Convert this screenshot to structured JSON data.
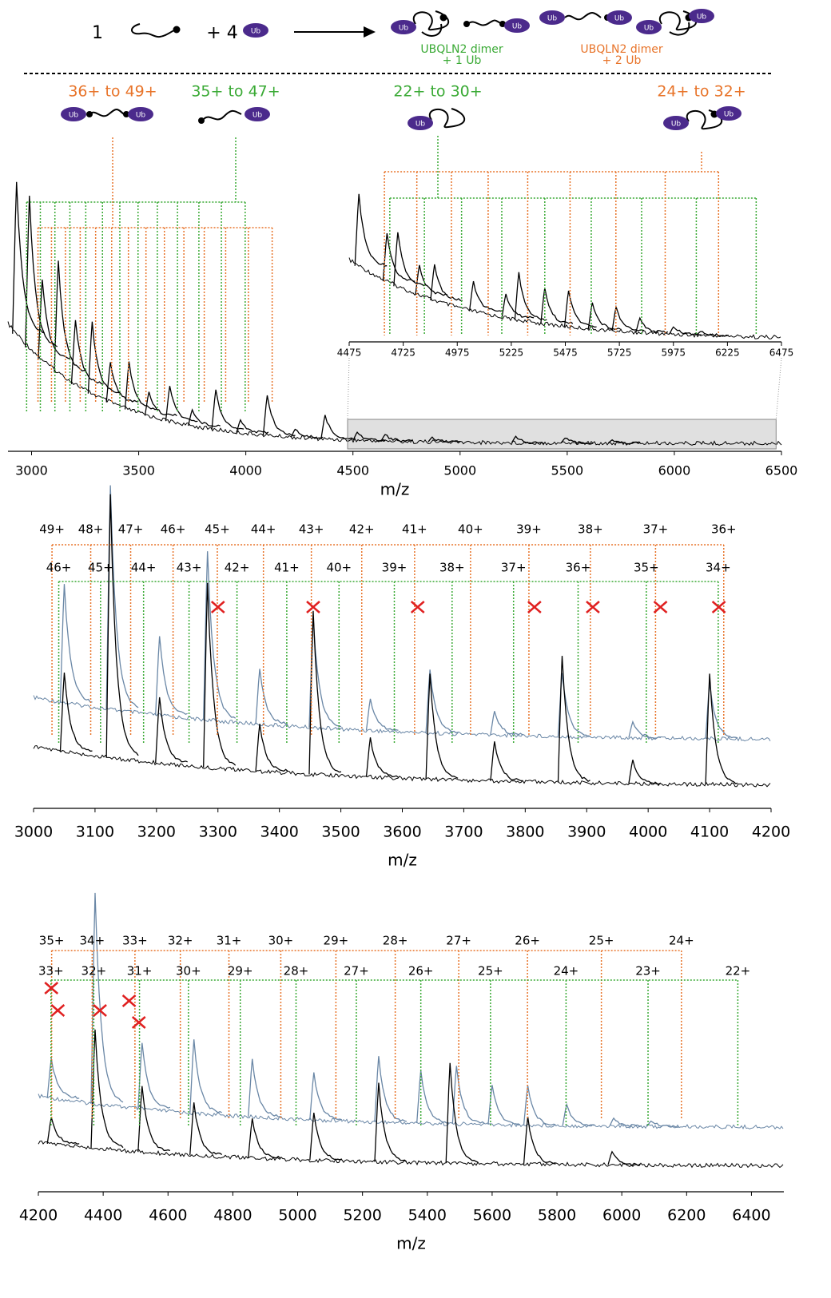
{
  "scheme": {
    "one": "1",
    "plus_four": "+ 4",
    "ub": "Ub",
    "product_1": [
      "UBQLN2 dimer",
      "+ 1 Ub"
    ],
    "product_2": [
      "UBQLN2 dimer",
      "+ 2 Ub"
    ]
  },
  "chart_data": [
    {
      "type": "spectrum",
      "xlabel": "m/z",
      "xlim": [
        2890,
        6500
      ],
      "xticks": [
        3000,
        3500,
        4000,
        4500,
        5000,
        5500,
        6000,
        6500
      ],
      "ylim": [
        0,
        100
      ],
      "series": [
        {
          "color": "#000000",
          "x": [
            2930,
            2990,
            3050,
            3125,
            3205,
            3283,
            3368,
            3455,
            3548,
            3645,
            3750,
            3860,
            3975,
            4100,
            4230,
            4370,
            4520,
            4650,
            4870,
            5260,
            5490,
            5710
          ],
          "values": [
            95,
            95,
            50,
            70,
            40,
            45,
            25,
            30,
            15,
            22,
            10,
            25,
            8,
            25,
            5,
            15,
            5,
            4,
            3,
            4,
            3,
            2
          ]
        }
      ],
      "brackets": [
        {
          "label": "36+ to 49+",
          "color": "#e8742a",
          "x": [
            3030,
            3093,
            3158,
            3227,
            3299,
            3374,
            3452,
            3534,
            3620,
            3711,
            3806,
            3906,
            4012,
            4123
          ]
        },
        {
          "label": "35+ to 47+",
          "color": "#3aaa35",
          "x": [
            2977,
            3041,
            3109,
            3179,
            3253,
            3331,
            3412,
            3497,
            3587,
            3681,
            3781,
            3886,
            3997
          ]
        }
      ],
      "inset": {
        "xlim": [
          4475,
          6475
        ],
        "xticks": [
          4475,
          4725,
          4975,
          5225,
          5475,
          5725,
          5975,
          6225,
          6475
        ],
        "ylim": [
          0,
          100
        ],
        "series": [
          {
            "color": "#000000",
            "x": [
              4520,
              4650,
              4700,
              4800,
              4870,
              5050,
              5200,
              5260,
              5380,
              5490,
              5600,
              5710,
              5820,
              5975,
              6100
            ],
            "values": [
              60,
              40,
              45,
              25,
              30,
              25,
              20,
              40,
              30,
              30,
              22,
              20,
              12,
              6,
              3
            ]
          }
        ],
        "brackets": [
          {
            "label": "22+ to 30+",
            "color": "#3aaa35",
            "x": [
              4663,
              4823,
              4995,
              5181,
              5380,
              5595,
              5828,
              6081,
              6358
            ]
          },
          {
            "label": "24+ to 32+",
            "color": "#e8742a",
            "x": [
              4638,
              4788,
              4948,
              5118,
              5301,
              5497,
              5709,
              5937,
              6184
            ]
          }
        ]
      }
    },
    {
      "type": "spectrum",
      "xlabel": "m/z",
      "xlim": [
        3000,
        4200
      ],
      "xticks": [
        3000,
        3100,
        3200,
        3300,
        3400,
        3500,
        3600,
        3700,
        3800,
        3900,
        4000,
        4100,
        4200
      ],
      "ylim": [
        0,
        100
      ],
      "series": [
        {
          "color": "#6a87a6",
          "x": [
            3050,
            3125,
            3205,
            3283,
            3368,
            3455,
            3548,
            3645,
            3750,
            3860,
            3975,
            4100
          ],
          "values": [
            45,
            85,
            30,
            64,
            21,
            42,
            12,
            24,
            9,
            24,
            6,
            21
          ]
        },
        {
          "color": "#000000",
          "x": [
            3050,
            3125,
            3205,
            3283,
            3368,
            3455,
            3548,
            3645,
            3750,
            3860,
            3975,
            4100
          ],
          "values": [
            30,
            100,
            25,
            70,
            18,
            62,
            15,
            40,
            15,
            48,
            9,
            42
          ]
        }
      ],
      "brackets": [
        {
          "color": "#e8742a",
          "x": [
            3030,
            3093,
            3158,
            3227,
            3299,
            3374,
            3452,
            3534,
            3620,
            3711,
            3806,
            3906,
            4012,
            4123
          ],
          "labels": [
            "49+",
            "48+",
            "47+",
            "46+",
            "45+",
            "44+",
            "43+",
            "42+",
            "41+",
            "40+",
            "39+",
            "38+",
            "37+",
            "36+"
          ]
        },
        {
          "color": "#3aaa35",
          "x": [
            3041,
            3109,
            3179,
            3253,
            3331,
            3412,
            3497,
            3587,
            3681,
            3781,
            3886,
            3997,
            4114
          ],
          "labels": [
            "46+",
            "45+",
            "44+",
            "43+",
            "42+",
            "41+",
            "40+",
            "39+",
            "38+",
            "37+",
            "36+",
            "35+",
            "34+"
          ]
        }
      ],
      "crosses": [
        3300,
        3455,
        3625,
        3815,
        3910,
        4020,
        4115
      ]
    },
    {
      "type": "spectrum",
      "xlabel": "m/z",
      "xlim": [
        4200,
        6500
      ],
      "xticks": [
        4200,
        4400,
        4600,
        4800,
        5000,
        5200,
        5400,
        5600,
        5800,
        6000,
        6200,
        6400
      ],
      "ylim": [
        0,
        100
      ],
      "series": [
        {
          "color": "#6a87a6",
          "x": [
            4240,
            4375,
            4520,
            4680,
            4860,
            5050,
            5250,
            5380,
            5490,
            5600,
            5710,
            5830,
            5975,
            6090
          ],
          "values": [
            15,
            80,
            25,
            28,
            22,
            18,
            25,
            20,
            22,
            15,
            15,
            8,
            3,
            2
          ]
        },
        {
          "color": "#000000",
          "x": [
            4240,
            4375,
            4520,
            4680,
            4860,
            5050,
            5250,
            5470,
            5710,
            5970
          ],
          "values": [
            10,
            45,
            25,
            20,
            15,
            18,
            30,
            38,
            18,
            5
          ]
        }
      ],
      "brackets": [
        {
          "color": "#e8742a",
          "x": [
            4241,
            4366,
            4498,
            4638,
            4788,
            4948,
            5118,
            5301,
            5497,
            5709,
            5937,
            6184
          ],
          "labels": [
            "35+",
            "34+",
            "33+",
            "32+",
            "31+",
            "30+",
            "29+",
            "28+",
            "27+",
            "26+",
            "25+",
            "24+"
          ]
        },
        {
          "color": "#3aaa35",
          "x": [
            4239,
            4371,
            4512,
            4663,
            4823,
            4995,
            5181,
            5380,
            5595,
            5828,
            6081,
            6358
          ],
          "labels": [
            "33+",
            "32+",
            "31+",
            "30+",
            "29+",
            "28+",
            "27+",
            "26+",
            "25+",
            "24+",
            "23+",
            "22+"
          ]
        }
      ],
      "crosses": [
        4240,
        4260,
        4390,
        4480,
        4510
      ]
    }
  ]
}
